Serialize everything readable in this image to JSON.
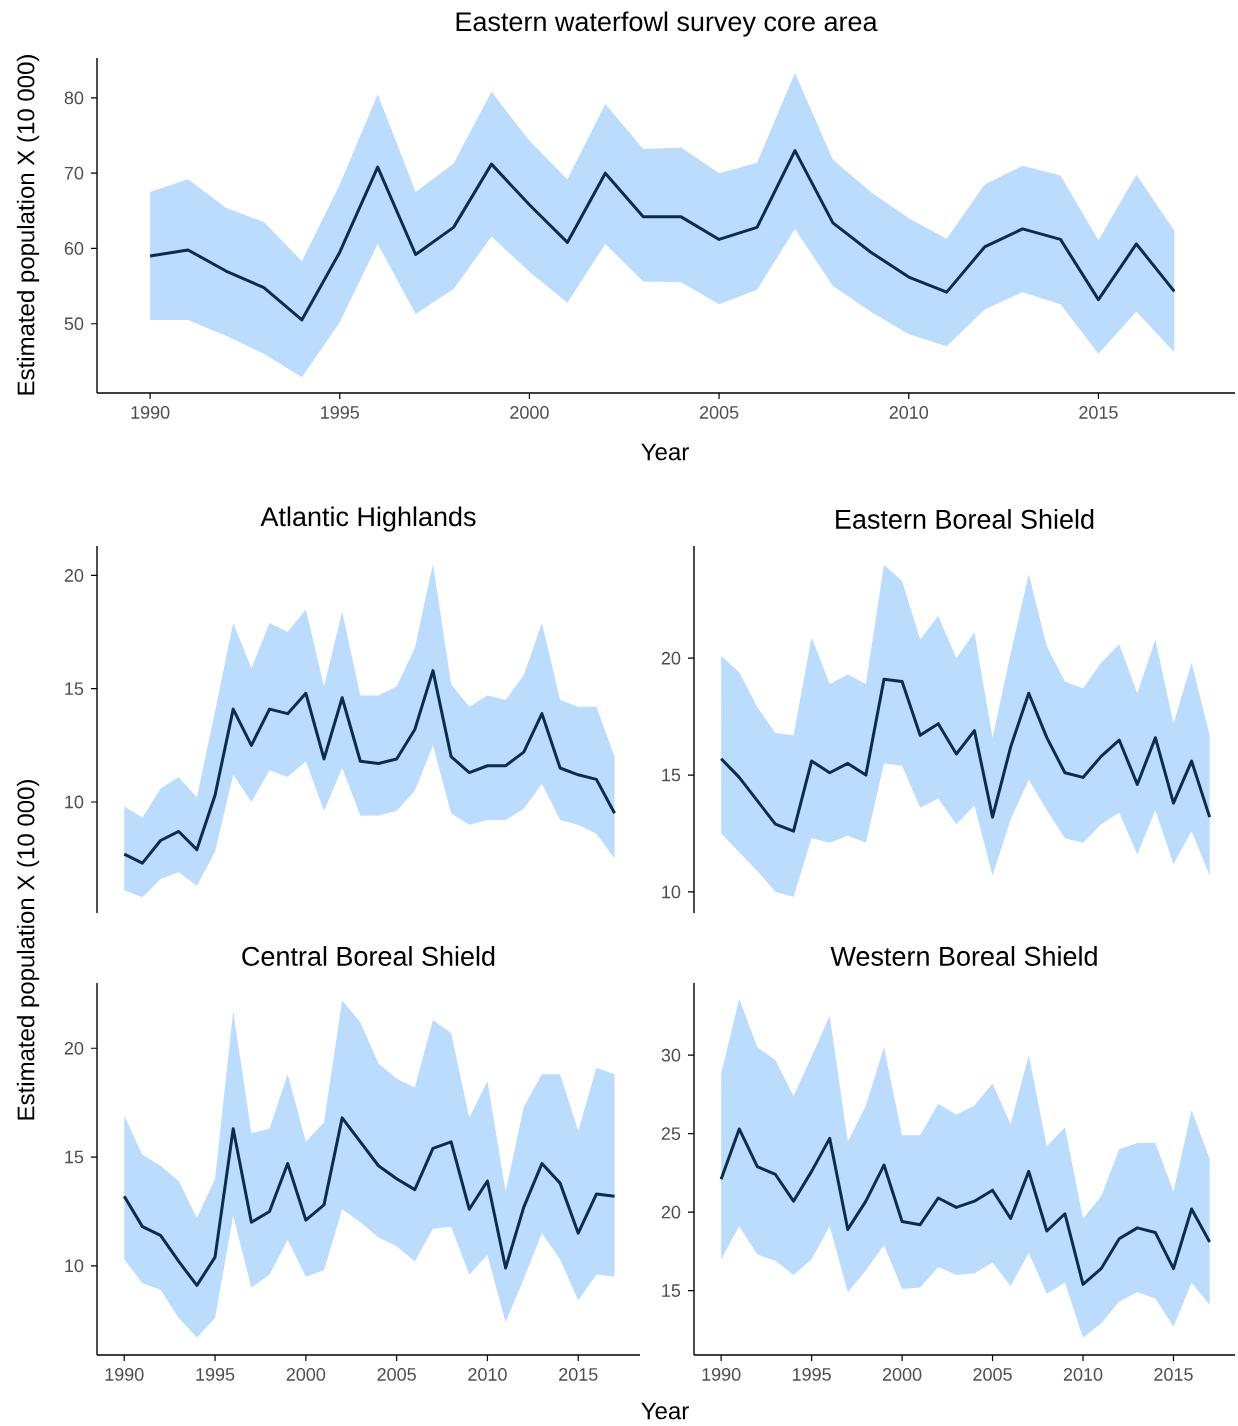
{
  "chart_data": [
    {
      "type": "line",
      "title": "Eastern waterfowl survey core area",
      "xlabel": "Year",
      "ylabel": "Estimated population X (10 000)",
      "x": [
        1990,
        1991,
        1992,
        1993,
        1994,
        1995,
        1996,
        1997,
        1998,
        1999,
        2000,
        2001,
        2002,
        2003,
        2004,
        2005,
        2006,
        2007,
        2008,
        2009,
        2010,
        2011,
        2012,
        2013,
        2014,
        2015,
        2016,
        2017
      ],
      "xlim": [
        1988.6,
        2018.6
      ],
      "xticks": [
        1990,
        1995,
        2000,
        2005,
        2010,
        2015
      ],
      "ylim": [
        40.8,
        85.3
      ],
      "yticks": [
        50,
        60,
        70,
        80
      ],
      "series": [
        {
          "color": "#0d2b4e",
          "values": [
            59,
            59.8,
            57,
            54.8,
            50.5,
            59.5,
            70.8,
            59.2,
            62.8,
            71.2,
            65.8,
            60.8,
            70,
            64.2,
            64.2,
            61.2,
            62.8,
            73,
            63.4,
            59.5,
            56.2,
            54.2,
            60.2,
            62.6,
            61.2,
            53.2,
            60.6,
            54.3
          ],
          "upper": [
            67.5,
            69.2,
            65.4,
            63.5,
            58.3,
            68.5,
            80.5,
            67.5,
            71.3,
            80.8,
            74.3,
            69.2,
            79.2,
            73.2,
            73.4,
            70,
            71.4,
            83.3,
            71.8,
            67.5,
            64,
            61.3,
            68.5,
            71,
            69.7,
            61.1,
            69.8,
            62.4
          ],
          "lower": [
            50.5,
            50.5,
            48.4,
            46,
            42.9,
            50.2,
            60.6,
            51.3,
            54.6,
            61.6,
            56.9,
            52.8,
            60.6,
            55.6,
            55.5,
            52.6,
            54.5,
            62.6,
            55,
            51.6,
            48.6,
            47,
            51.9,
            54.2,
            52.6,
            46,
            51.6,
            46.2
          ]
        }
      ]
    },
    {
      "type": "line",
      "title": "Atlantic Highlands",
      "ylabel": "Estimated population X (10 000)",
      "x": [
        1990,
        1991,
        1992,
        1993,
        1994,
        1995,
        1996,
        1997,
        1998,
        1999,
        2000,
        2001,
        2002,
        2003,
        2004,
        2005,
        2006,
        2007,
        2008,
        2009,
        2010,
        2011,
        2012,
        2013,
        2014,
        2015,
        2016,
        2017
      ],
      "ylim": [
        5.1,
        21.3
      ],
      "yticks": [
        10,
        15,
        20
      ],
      "tick_labels": "y",
      "series": [
        {
          "color": "#0d2b4e",
          "values": [
            7.7,
            7.3,
            8.3,
            8.7,
            7.9,
            10.3,
            14.1,
            12.5,
            14.1,
            13.9,
            14.8,
            11.9,
            14.6,
            11.8,
            11.7,
            11.9,
            13.2,
            15.8,
            12,
            11.3,
            11.6,
            11.6,
            12.2,
            13.9,
            11.5,
            11.2,
            11,
            9.5
          ],
          "upper": [
            9.8,
            9.3,
            10.6,
            11.1,
            10.2,
            14,
            17.9,
            15.9,
            17.9,
            17.5,
            18.5,
            15.1,
            18.4,
            14.7,
            14.7,
            15.1,
            16.8,
            20.5,
            15.2,
            14.2,
            14.7,
            14.5,
            15.6,
            17.9,
            14.5,
            14.2,
            14.2,
            12
          ],
          "lower": [
            6.1,
            5.8,
            6.6,
            6.9,
            6.3,
            7.8,
            11.2,
            10,
            11.4,
            11.1,
            11.8,
            9.6,
            11.5,
            9.4,
            9.4,
            9.6,
            10.5,
            12.5,
            9.5,
            9,
            9.2,
            9.2,
            9.7,
            10.8,
            9.2,
            9,
            8.6,
            7.5
          ]
        }
      ]
    },
    {
      "type": "line",
      "title": "Eastern Boreal Shield",
      "x": [
        1990,
        1991,
        1992,
        1993,
        1994,
        1995,
        1996,
        1997,
        1998,
        1999,
        2000,
        2001,
        2002,
        2003,
        2004,
        2005,
        2006,
        2007,
        2008,
        2009,
        2010,
        2011,
        2012,
        2013,
        2014,
        2015,
        2016,
        2017
      ],
      "ylim": [
        9.1,
        24.8
      ],
      "yticks": [
        10,
        15,
        20
      ],
      "tick_labels": "y",
      "series": [
        {
          "color": "#0d2b4e",
          "values": [
            15.7,
            14.9,
            13.9,
            12.9,
            12.6,
            15.6,
            15.1,
            15.5,
            15,
            19.1,
            19,
            16.7,
            17.2,
            15.9,
            16.9,
            13.2,
            16.2,
            18.5,
            16.6,
            15.1,
            14.9,
            15.8,
            16.5,
            14.6,
            16.6,
            13.8,
            15.6,
            13.2
          ],
          "upper": [
            20.1,
            19.4,
            17.9,
            16.8,
            16.7,
            20.9,
            18.9,
            19.3,
            18.9,
            24,
            23.3,
            20.8,
            21.8,
            20,
            21.1,
            16.6,
            20.2,
            23.6,
            20.5,
            19,
            18.7,
            19.8,
            20.6,
            18.5,
            20.8,
            17.2,
            19.8,
            16.7
          ],
          "lower": [
            12.5,
            11.7,
            10.9,
            10,
            9.8,
            12.3,
            12.1,
            12.4,
            12.1,
            15.5,
            15.4,
            13.6,
            14,
            12.9,
            13.7,
            10.7,
            13.1,
            14.8,
            13.5,
            12.3,
            12.1,
            12.9,
            13.4,
            11.6,
            13.5,
            11.2,
            12.6,
            10.7
          ]
        }
      ]
    },
    {
      "type": "line",
      "title": "Central Boreal Shield",
      "xlabel": "Year",
      "x": [
        1990,
        1991,
        1992,
        1993,
        1994,
        1995,
        1996,
        1997,
        1998,
        1999,
        2000,
        2001,
        2002,
        2003,
        2004,
        2005,
        2006,
        2007,
        2008,
        2009,
        2010,
        2011,
        2012,
        2013,
        2014,
        2015,
        2016,
        2017
      ],
      "xlim": [
        1988.5,
        2018.4
      ],
      "xticks": [
        1990,
        1995,
        2000,
        2005,
        2010,
        2015
      ],
      "ylim": [
        5.9,
        23
      ],
      "yticks": [
        10,
        15,
        20
      ],
      "series": [
        {
          "color": "#0d2b4e",
          "values": [
            13.2,
            11.8,
            11.4,
            10.2,
            9.1,
            10.4,
            16.3,
            12,
            12.5,
            14.7,
            12.1,
            12.8,
            16.8,
            15.7,
            14.6,
            14,
            13.5,
            15.4,
            15.7,
            12.6,
            13.9,
            9.9,
            12.7,
            14.7,
            13.8,
            11.5,
            13.3,
            13.2
          ],
          "upper": [
            16.9,
            15.1,
            14.6,
            13.9,
            12.2,
            14,
            21.7,
            16.1,
            16.3,
            18.8,
            15.7,
            16.6,
            22.2,
            21.2,
            19.3,
            18.6,
            18.2,
            21.3,
            20.7,
            16.8,
            18.5,
            13.4,
            17.3,
            18.8,
            18.8,
            16.2,
            19.1,
            18.8
          ],
          "lower": [
            10.3,
            9.2,
            8.9,
            7.6,
            6.7,
            7.6,
            12.3,
            9,
            9.6,
            11.2,
            9.5,
            9.8,
            12.6,
            12,
            11.3,
            10.9,
            10.2,
            11.7,
            11.8,
            9.6,
            10.5,
            7.4,
            9.4,
            11.5,
            10.3,
            8.4,
            9.6,
            9.5
          ]
        }
      ]
    },
    {
      "type": "line",
      "title": "Western Boreal Shield",
      "x": [
        1990,
        1991,
        1992,
        1993,
        1994,
        1995,
        1996,
        1997,
        1998,
        1999,
        2000,
        2001,
        2002,
        2003,
        2004,
        2005,
        2006,
        2007,
        2008,
        2009,
        2010,
        2011,
        2012,
        2013,
        2014,
        2015,
        2016,
        2017
      ],
      "xlim": [
        1988.5,
        2018.4
      ],
      "xticks": [
        1990,
        1995,
        2000,
        2005,
        2010,
        2015
      ],
      "ylim": [
        10.9,
        34.6
      ],
      "yticks": [
        15,
        20,
        25,
        30
      ],
      "series": [
        {
          "color": "#0d2b4e",
          "values": [
            22.1,
            25.3,
            22.9,
            22.4,
            20.7,
            22.6,
            24.7,
            18.9,
            20.7,
            23,
            19.4,
            19.2,
            20.9,
            20.3,
            20.7,
            21.4,
            19.6,
            22.6,
            18.8,
            19.9,
            15.4,
            16.4,
            18.3,
            19,
            18.7,
            16.4,
            20.2,
            18.1
          ],
          "upper": [
            28.8,
            33.6,
            30.5,
            29.7,
            27.4,
            29.9,
            32.5,
            24.5,
            26.8,
            30.5,
            24.9,
            24.9,
            26.9,
            26.2,
            26.8,
            28.2,
            25.6,
            30,
            24.2,
            25.4,
            19.6,
            21,
            24,
            24.4,
            24.4,
            21.3,
            26.5,
            23.4
          ],
          "lower": [
            17,
            19.1,
            17.3,
            16.9,
            16,
            17,
            19.1,
            14.9,
            16.3,
            17.9,
            15.1,
            15.2,
            16.5,
            16,
            16.1,
            16.8,
            15.3,
            17.4,
            14.8,
            15.5,
            12,
            12.9,
            14.3,
            14.9,
            14.5,
            12.7,
            15.5,
            14.1
          ]
        }
      ]
    }
  ]
}
